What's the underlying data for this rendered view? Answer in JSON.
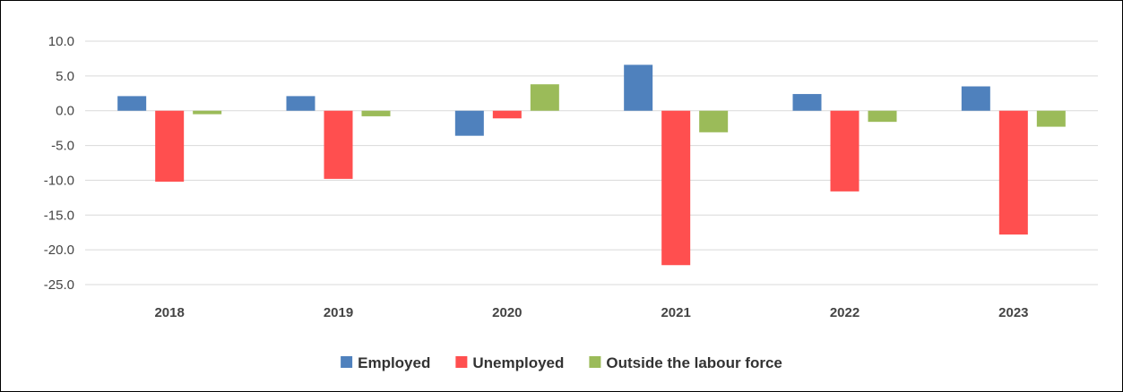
{
  "chart_data": {
    "type": "bar",
    "title": "",
    "xlabel": "",
    "ylabel": "",
    "categories": [
      "2018",
      "2019",
      "2020",
      "2021",
      "2022",
      "2023"
    ],
    "ylim": [
      -25,
      10
    ],
    "yticks": [
      10.0,
      5.0,
      0.0,
      -5.0,
      -10.0,
      -15.0,
      -20.0,
      -25.0
    ],
    "ytick_labels": [
      "10.0",
      "5.0",
      "0.0",
      "-5.0",
      "-10.0",
      "-15.0",
      "-20.0",
      "-25.0"
    ],
    "grid": true,
    "legend_position": "bottom",
    "series": [
      {
        "name": "Employed",
        "color": "#4F81BD",
        "values": [
          2.1,
          2.1,
          -3.6,
          6.6,
          2.4,
          3.5
        ]
      },
      {
        "name": "Unemployed",
        "color": "#FF4F4F",
        "values": [
          -10.2,
          -9.8,
          -1.1,
          -22.2,
          -11.6,
          -17.8
        ]
      },
      {
        "name": "Outside the labour force",
        "color": "#9BBB59",
        "values": [
          -0.5,
          -0.8,
          3.8,
          -3.1,
          -1.6,
          -2.3
        ]
      }
    ]
  }
}
